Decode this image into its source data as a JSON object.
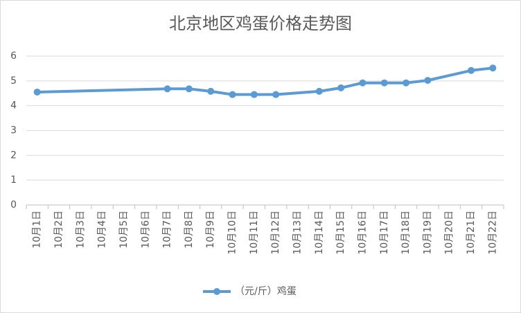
{
  "chart_data": {
    "type": "line",
    "title": "北京地区鸡蛋价格走势图",
    "categories": [
      "10月1日",
      "10月2日",
      "10月3日",
      "10月4日",
      "10月5日",
      "10月6日",
      "10月7日",
      "10月8日",
      "10月9日",
      "10月10日",
      "10月11日",
      "10月12日",
      "10月13日",
      "10月14日",
      "10月15日",
      "10月16日",
      "10月17日",
      "10月18日",
      "10月19日",
      "10月20日",
      "10月21日",
      "10月22日"
    ],
    "series": [
      {
        "name": "（元/斤）鸡蛋",
        "color": "#5b9bd5",
        "values": [
          4.55,
          null,
          null,
          null,
          null,
          null,
          4.68,
          4.68,
          4.58,
          4.45,
          4.45,
          4.45,
          null,
          4.58,
          4.72,
          4.92,
          4.92,
          4.92,
          5.02,
          null,
          5.42,
          5.52
        ]
      }
    ],
    "ylim": [
      0,
      6
    ],
    "yticks": [
      0,
      1,
      2,
      3,
      4,
      5,
      6
    ],
    "grid": true,
    "legend": "bottom"
  }
}
